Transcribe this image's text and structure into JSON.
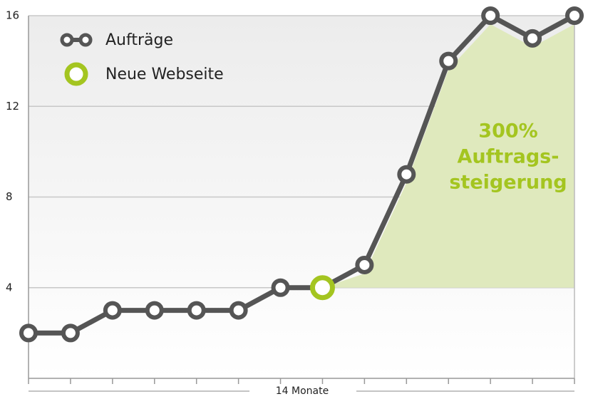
{
  "chart_data": {
    "type": "line",
    "categories": [
      null,
      null,
      null,
      null,
      null,
      null,
      null,
      null,
      null,
      null,
      null,
      null,
      null,
      null
    ],
    "series": [
      {
        "name": "Aufträge",
        "color": "#555555",
        "values": [
          2,
          2,
          3,
          3,
          3,
          3,
          4,
          4,
          5,
          9,
          14,
          16,
          15,
          16
        ]
      },
      {
        "name": "Neue Webseite",
        "color": "#a4c520",
        "values": [
          null,
          null,
          null,
          null,
          null,
          null,
          null,
          4,
          null,
          null,
          null,
          null,
          null,
          null
        ]
      }
    ],
    "ylim": [
      0,
      16
    ],
    "yticks": [
      4,
      8,
      12,
      16
    ],
    "grid": true,
    "xlabel": "14 Monate",
    "annotation": [
      "300%",
      "Auftrags-",
      "steigerung"
    ],
    "annotation_color": "#a4c520",
    "area_color": "#dfe9bd"
  }
}
